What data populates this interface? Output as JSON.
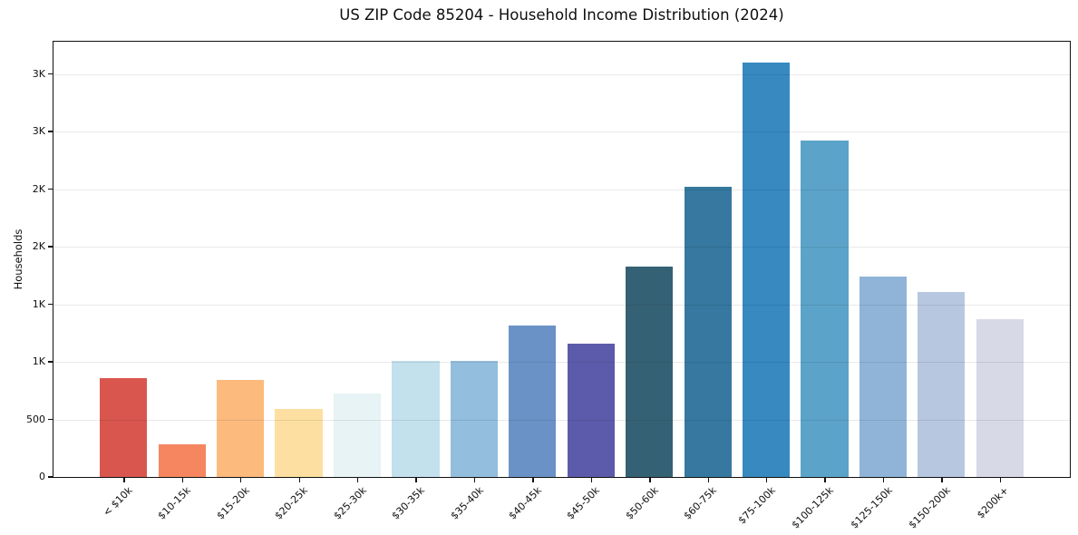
{
  "chart_data": {
    "type": "bar",
    "title": "US ZIP Code 85204 - Household Income Distribution (2024)",
    "ylabel": "Households",
    "xlabel": "",
    "categories": [
      "< $10k",
      "$10-15k",
      "$15-20k",
      "$20-25k",
      "$25-30k",
      "$30-35k",
      "$35-40k",
      "$40-45k",
      "$45-50k",
      "$50-60k",
      "$60-75k",
      "$75-100k",
      "$100-125k",
      "$125-150k",
      "$150-200k",
      "$200k+"
    ],
    "values": [
      860,
      285,
      845,
      590,
      725,
      1010,
      1010,
      1315,
      1160,
      1830,
      2520,
      3600,
      2920,
      1740,
      1610,
      1370
    ],
    "bar_colors": [
      "#d9564f",
      "#f58660",
      "#fcba7c",
      "#fde0a1",
      "#e7f3f4",
      "#c3e0ed",
      "#93bedd",
      "#6b92c7",
      "#5c5bab",
      "#356174",
      "#36789f",
      "#3789c0",
      "#5ba3c9",
      "#8fb4d8",
      "#b7c7e0",
      "#d8d9e6"
    ],
    "yticks": [
      {
        "value": 0,
        "label": "0"
      },
      {
        "value": 500,
        "label": "500"
      },
      {
        "value": 1000,
        "label": "1K"
      },
      {
        "value": 1500,
        "label": "1K"
      },
      {
        "value": 2000,
        "label": "2K"
      },
      {
        "value": 2500,
        "label": "2K"
      },
      {
        "value": 3000,
        "label": "3K"
      },
      {
        "value": 3500,
        "label": "3K"
      }
    ],
    "ylim": [
      0,
      3780
    ],
    "grid": "horizontal",
    "legend_position": "none",
    "background_color": "#ffffff",
    "axis_color": "#111111",
    "gridline_color": "#e9e9e9"
  }
}
